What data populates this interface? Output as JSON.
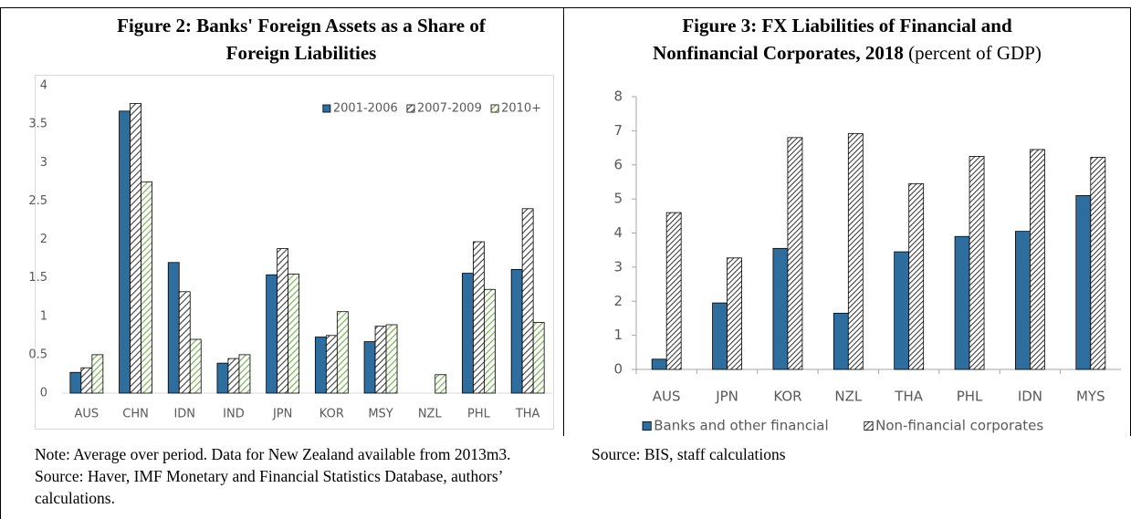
{
  "chart_data": [
    {
      "type": "bar",
      "title": [
        "Figure 2: Banks' Foreign Assets as a Share of",
        "Foreign Liabilities"
      ],
      "categories": [
        "AUS",
        "CHN",
        "IDN",
        "IND",
        "JPN",
        "KOR",
        "MSY",
        "NZL",
        "PHL",
        "THA"
      ],
      "series": [
        {
          "name": "2001-2006",
          "color": "#2e6e9e",
          "fill": "solid",
          "values": [
            0.27,
            3.67,
            1.7,
            0.39,
            1.54,
            0.73,
            0.67,
            null,
            1.56,
            1.61
          ]
        },
        {
          "name": "2007-2009",
          "color": "#404040",
          "fill": "hatch",
          "values": [
            0.33,
            3.77,
            1.32,
            0.45,
            1.88,
            0.75,
            0.87,
            null,
            1.97,
            2.4
          ]
        },
        {
          "name": "2010+",
          "color": "#70ad47",
          "fill": "hatch",
          "values": [
            0.5,
            2.75,
            0.7,
            0.5,
            1.55,
            1.06,
            0.89,
            0.24,
            1.35,
            0.92
          ]
        }
      ],
      "ylim": [
        0,
        4
      ],
      "yticks": [
        0,
        0.5,
        1,
        1.5,
        2,
        2.5,
        3,
        3.5,
        4
      ],
      "grid": false,
      "legend": "top-right",
      "note": "Note: Average over period. Data for New Zealand available from 2013m3. Source: Haver, IMF Monetary and Financial Statistics Database, authors’ calculations."
    },
    {
      "type": "bar",
      "title": [
        "Figure 3: FX Liabilities of Financial and",
        "Nonfinancial Corporates, 2018"
      ],
      "subtitle": "(percent of GDP)",
      "categories": [
        "AUS",
        "JPN",
        "KOR",
        "NZL",
        "THA",
        "PHL",
        "IDN",
        "MYS"
      ],
      "series": [
        {
          "name": "Banks and other financial",
          "color": "#2e6e9e",
          "fill": "solid",
          "values": [
            0.3,
            1.95,
            3.55,
            1.65,
            3.45,
            3.9,
            4.05,
            5.1
          ]
        },
        {
          "name": "Non-financial corporates",
          "color": "#1a1a1a",
          "fill": "hatch",
          "values": [
            4.6,
            3.27,
            6.8,
            6.92,
            5.45,
            6.25,
            6.45,
            6.22
          ]
        }
      ],
      "ylim": [
        0,
        8
      ],
      "yticks": [
        0,
        1,
        2,
        3,
        4,
        5,
        6,
        7,
        8
      ],
      "grid": false,
      "legend": "bottom",
      "note": "Source: BIS, staff calculations"
    }
  ]
}
